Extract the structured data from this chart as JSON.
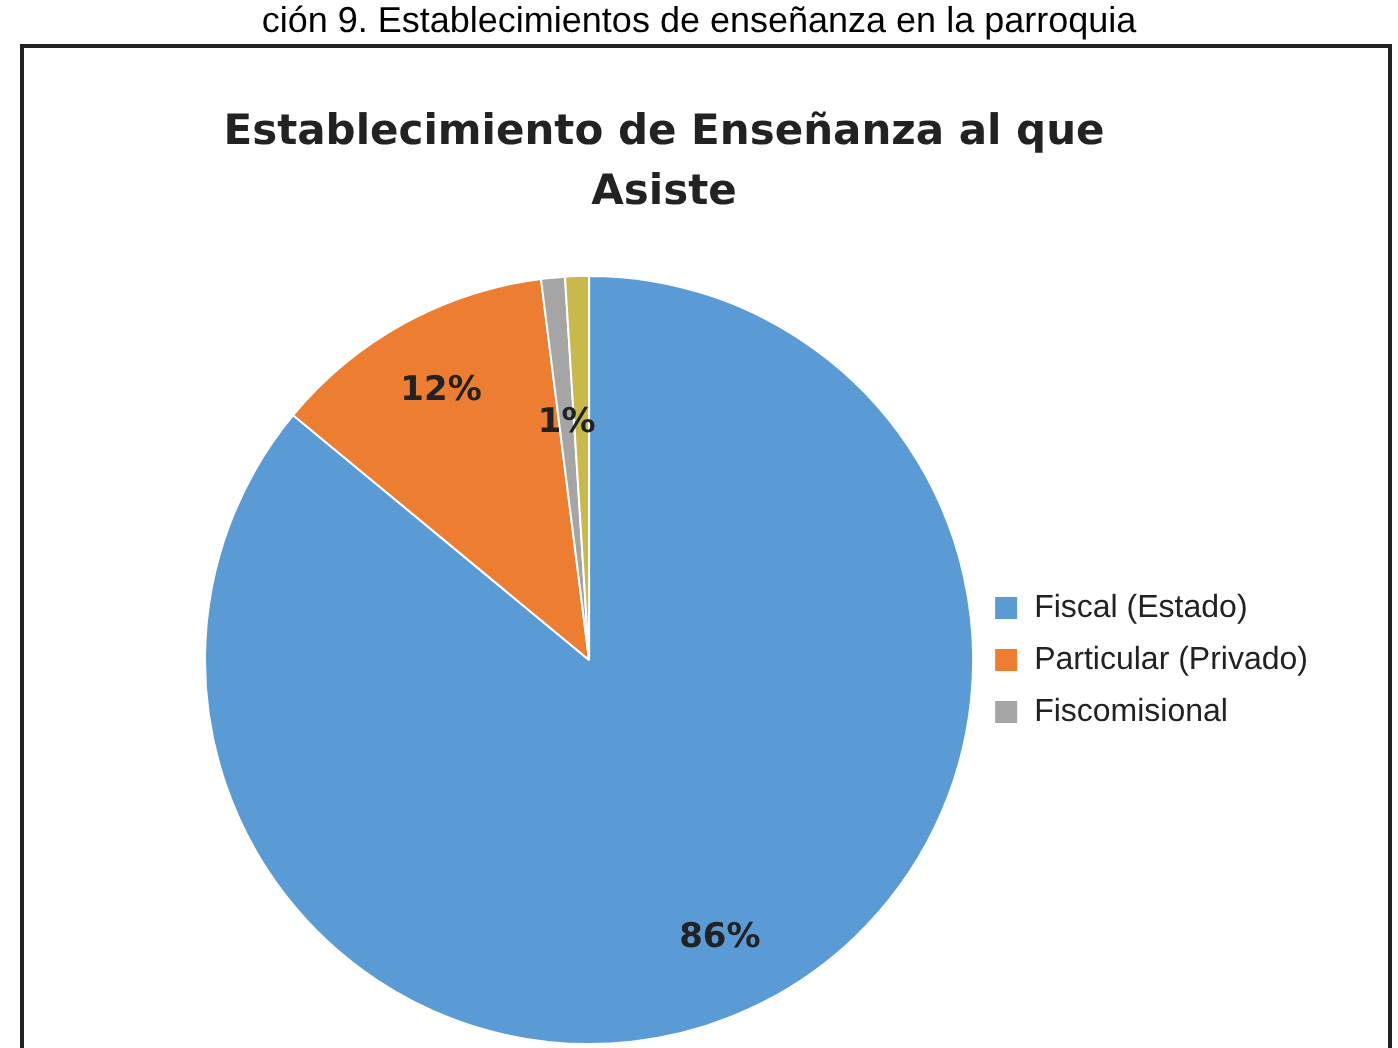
{
  "chart_data": {
    "type": "pie",
    "title": "Establecimiento de Enseñanza al que Asiste",
    "annotations": [
      "ción 9. Establecimientos de enseñanza en la parroquia"
    ],
    "categories": [
      "Fiscal (Estado)",
      "Particular (Privado)",
      "Fiscomisional",
      null
    ],
    "values": [
      86,
      12,
      1,
      1
    ],
    "colors": [
      "#5b9bd5",
      "#ed7d31",
      "#a5a5a5",
      "#c9b84a"
    ],
    "value_labels": [
      "86%",
      "12%",
      "1%",
      null
    ],
    "legend": "right"
  }
}
